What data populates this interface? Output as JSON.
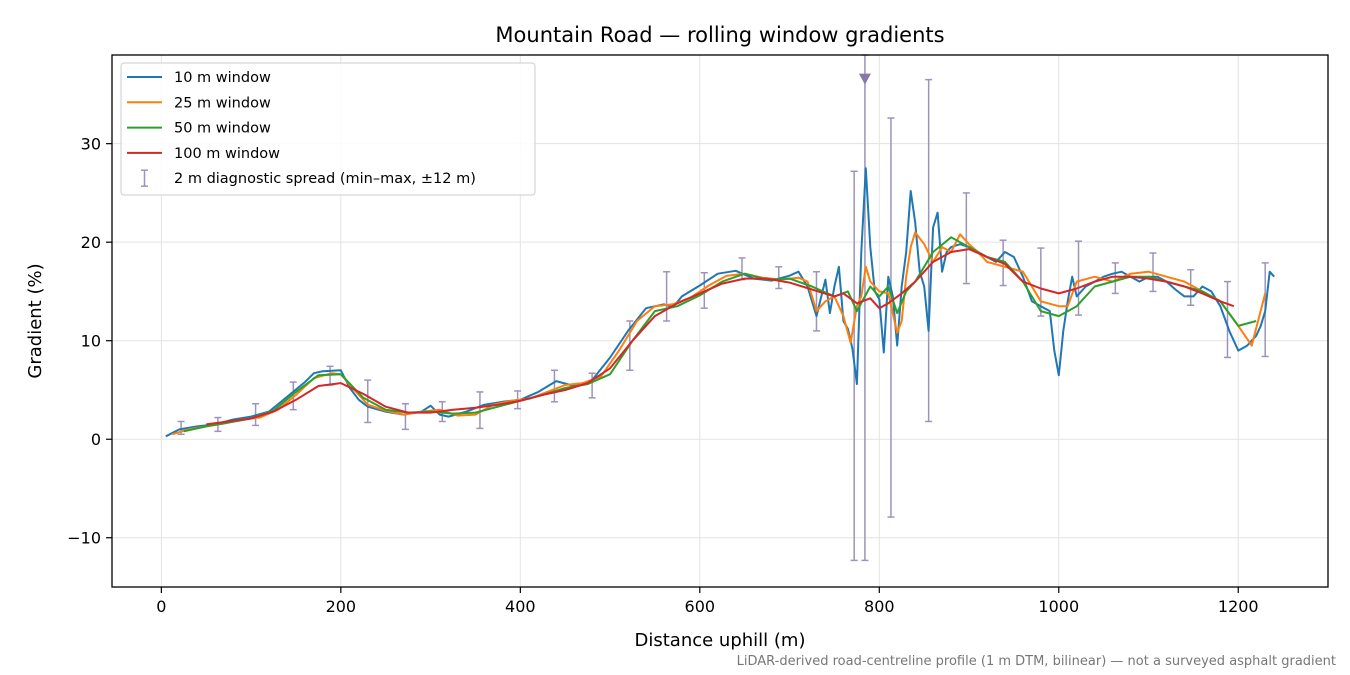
{
  "chart_data": {
    "type": "line",
    "title": "Mountain Road — rolling window gradients",
    "xlabel": "Distance uphill (m)",
    "ylabel": "Gradient (%)",
    "xlim": [
      -55,
      1300
    ],
    "ylim": [
      -15,
      39
    ],
    "xticks": [
      0,
      200,
      400,
      600,
      800,
      1000,
      1200
    ],
    "yticks": [
      -10,
      0,
      10,
      20,
      30
    ],
    "xtick_labels": [
      "0",
      "200",
      "400",
      "600",
      "800",
      "1000",
      "1200"
    ],
    "ytick_labels": [
      "−10",
      "0",
      "10",
      "20",
      "30"
    ],
    "grid": true,
    "legend_position": "top-left",
    "footnote": "LiDAR-derived road-centreline profile (1 m DTM, bilinear) — not a surveyed asphalt gradient",
    "series": [
      {
        "name": "10 m window",
        "color": "#1f77b4",
        "x": [
          5,
          20,
          40,
          60,
          80,
          100,
          120,
          140,
          160,
          170,
          180,
          200,
          210,
          220,
          230,
          250,
          270,
          290,
          300,
          310,
          320,
          340,
          360,
          380,
          400,
          420,
          440,
          460,
          480,
          500,
          520,
          540,
          560,
          570,
          580,
          600,
          620,
          640,
          660,
          680,
          700,
          710,
          720,
          730,
          740,
          745,
          750,
          755,
          760,
          765,
          770,
          775,
          780,
          785,
          790,
          795,
          800,
          805,
          810,
          815,
          820,
          825,
          830,
          835,
          840,
          845,
          850,
          855,
          860,
          865,
          870,
          875,
          880,
          890,
          900,
          910,
          920,
          930,
          940,
          950,
          960,
          970,
          980,
          990,
          995,
          1000,
          1005,
          1010,
          1015,
          1020,
          1030,
          1040,
          1050,
          1060,
          1070,
          1080,
          1090,
          1100,
          1110,
          1120,
          1130,
          1140,
          1150,
          1160,
          1170,
          1180,
          1190,
          1200,
          1210,
          1220,
          1225,
          1230,
          1235,
          1240
        ],
        "y": [
          0.3,
          1.0,
          1.3,
          1.5,
          2.0,
          2.3,
          2.8,
          4.3,
          5.8,
          6.7,
          6.9,
          7.0,
          5.2,
          4.0,
          3.3,
          2.8,
          2.5,
          2.8,
          3.4,
          2.5,
          2.3,
          2.8,
          3.5,
          3.8,
          4.0,
          4.8,
          5.9,
          5.4,
          6.0,
          8.3,
          11.0,
          13.3,
          13.7,
          13.4,
          14.5,
          15.6,
          16.8,
          17.1,
          16.3,
          16.1,
          16.6,
          17.0,
          15.5,
          12.5,
          16.2,
          12.8,
          15.5,
          17.5,
          12.0,
          11.2,
          9.2,
          5.6,
          19.0,
          27.5,
          19.5,
          15.0,
          14.2,
          8.8,
          16.5,
          14.5,
          9.5,
          15.5,
          19.0,
          25.2,
          22.0,
          17.0,
          15.5,
          11.0,
          21.5,
          23.0,
          17.0,
          19.0,
          19.5,
          19.8,
          19.5,
          19.0,
          18.5,
          18.0,
          19.0,
          18.5,
          16.5,
          14.0,
          13.5,
          13.0,
          9.0,
          6.5,
          11.0,
          14.0,
          16.5,
          14.5,
          15.5,
          16.0,
          16.5,
          16.8,
          17.0,
          16.5,
          16.0,
          16.5,
          16.5,
          16.0,
          15.2,
          14.5,
          14.5,
          15.5,
          15.0,
          13.5,
          11.0,
          9.0,
          9.5,
          10.5,
          11.5,
          13.0,
          17.0,
          16.5
        ]
      },
      {
        "name": "25 m window",
        "color": "#ff7f0e",
        "x": [
          12,
          30,
          50,
          70,
          90,
          110,
          130,
          150,
          170,
          190,
          200,
          215,
          230,
          250,
          270,
          290,
          310,
          330,
          350,
          370,
          390,
          410,
          430,
          450,
          470,
          490,
          510,
          530,
          550,
          570,
          590,
          610,
          630,
          650,
          670,
          690,
          710,
          720,
          730,
          740,
          750,
          760,
          768,
          775,
          780,
          785,
          790,
          800,
          810,
          820,
          825,
          830,
          835,
          840,
          850,
          860,
          870,
          880,
          890,
          900,
          910,
          920,
          940,
          960,
          980,
          1000,
          1010,
          1020,
          1040,
          1060,
          1080,
          1100,
          1120,
          1140,
          1160,
          1180,
          1200,
          1215,
          1230
        ],
        "y": [
          0.5,
          1.0,
          1.3,
          1.6,
          2.0,
          2.2,
          3.0,
          4.5,
          6.2,
          6.7,
          6.6,
          5.0,
          3.5,
          2.9,
          2.5,
          2.8,
          3.0,
          2.4,
          2.5,
          3.5,
          3.9,
          4.1,
          4.8,
          5.5,
          5.7,
          6.4,
          9.0,
          12.0,
          13.5,
          13.7,
          14.4,
          15.6,
          16.6,
          16.8,
          16.4,
          16.2,
          16.4,
          16.0,
          13.0,
          14.0,
          14.5,
          12.5,
          9.8,
          13.5,
          14.5,
          17.5,
          16.0,
          15.0,
          14.8,
          10.8,
          12.0,
          16.5,
          19.5,
          21.0,
          19.8,
          18.0,
          19.5,
          19.0,
          20.8,
          19.8,
          19.0,
          18.0,
          17.5,
          17.0,
          14.0,
          13.5,
          13.5,
          16.0,
          16.5,
          16.0,
          16.8,
          17.0,
          16.5,
          16.0,
          15.0,
          14.0,
          11.5,
          9.5,
          14.8
        ]
      },
      {
        "name": "50 m window",
        "color": "#2ca02c",
        "x": [
          25,
          50,
          75,
          100,
          125,
          150,
          175,
          200,
          225,
          250,
          275,
          300,
          325,
          350,
          375,
          400,
          425,
          450,
          475,
          500,
          525,
          550,
          575,
          600,
          625,
          650,
          675,
          700,
          725,
          750,
          765,
          775,
          790,
          800,
          810,
          820,
          830,
          840,
          860,
          880,
          900,
          920,
          940,
          960,
          980,
          1000,
          1020,
          1040,
          1060,
          1080,
          1100,
          1120,
          1140,
          1160,
          1180,
          1200,
          1220
        ],
        "y": [
          0.8,
          1.3,
          1.7,
          2.1,
          2.9,
          4.8,
          6.5,
          6.6,
          4.2,
          3.0,
          2.7,
          2.8,
          2.6,
          2.7,
          3.3,
          3.9,
          4.5,
          5.2,
          5.6,
          6.6,
          10.0,
          13.0,
          13.5,
          14.6,
          16.0,
          16.8,
          16.2,
          16.3,
          15.5,
          14.5,
          15.0,
          13.0,
          15.5,
          14.5,
          15.5,
          12.8,
          15.0,
          16.0,
          19.0,
          20.5,
          19.5,
          18.5,
          18.0,
          16.0,
          13.0,
          12.5,
          13.5,
          15.5,
          16.0,
          16.5,
          16.5,
          16.0,
          15.5,
          15.0,
          14.0,
          11.5,
          12.0
        ]
      },
      {
        "name": "100 m window",
        "color": "#d62728",
        "x": [
          50,
          100,
          125,
          150,
          175,
          200,
          225,
          250,
          275,
          300,
          325,
          350,
          375,
          400,
          425,
          450,
          475,
          500,
          525,
          550,
          575,
          600,
          625,
          650,
          675,
          700,
          725,
          750,
          760,
          775,
          790,
          800,
          810,
          825,
          840,
          860,
          880,
          900,
          920,
          940,
          960,
          980,
          1000,
          1020,
          1040,
          1060,
          1080,
          1100,
          1120,
          1140,
          1160,
          1180,
          1195
        ],
        "y": [
          1.5,
          2.1,
          2.8,
          4.0,
          5.4,
          5.7,
          4.6,
          3.3,
          2.7,
          2.7,
          3.0,
          3.2,
          3.5,
          3.9,
          4.5,
          5.0,
          5.7,
          7.2,
          10.0,
          12.5,
          13.8,
          14.8,
          15.8,
          16.3,
          16.3,
          15.9,
          15.2,
          14.5,
          14.8,
          13.8,
          14.3,
          13.3,
          13.8,
          14.8,
          16.0,
          18.0,
          19.0,
          19.3,
          18.5,
          17.8,
          16.0,
          15.3,
          14.8,
          15.3,
          16.0,
          16.5,
          16.5,
          16.3,
          16.0,
          15.5,
          14.8,
          14.0,
          13.5
        ]
      }
    ],
    "errorbars": {
      "name": "2 m diagnostic spread (min–max, ±12 m)",
      "color": "#9d93bd",
      "points": [
        {
          "x": 22,
          "low": 0.5,
          "high": 1.8
        },
        {
          "x": 63,
          "low": 0.8,
          "high": 2.2
        },
        {
          "x": 105,
          "low": 1.4,
          "high": 3.6
        },
        {
          "x": 147,
          "low": 3.0,
          "high": 5.8
        },
        {
          "x": 188,
          "low": 5.5,
          "high": 7.4
        },
        {
          "x": 230,
          "low": 1.7,
          "high": 6.0
        },
        {
          "x": 272,
          "low": 1.0,
          "high": 3.6
        },
        {
          "x": 313,
          "low": 1.8,
          "high": 3.8
        },
        {
          "x": 355,
          "low": 1.1,
          "high": 4.8
        },
        {
          "x": 397,
          "low": 3.1,
          "high": 4.9
        },
        {
          "x": 438,
          "low": 3.8,
          "high": 7.0
        },
        {
          "x": 480,
          "low": 4.2,
          "high": 6.7
        },
        {
          "x": 522,
          "low": 7.0,
          "high": 12.0
        },
        {
          "x": 563,
          "low": 12.0,
          "high": 17.0
        },
        {
          "x": 605,
          "low": 13.3,
          "high": 16.9
        },
        {
          "x": 647,
          "low": 16.2,
          "high": 18.4
        },
        {
          "x": 688,
          "low": 15.3,
          "high": 17.5
        },
        {
          "x": 730,
          "low": 11.0,
          "high": 17.0
        },
        {
          "x": 772,
          "low": -12.3,
          "high": 27.2
        },
        {
          "x": 784,
          "low": -12.3,
          "high": 39.0
        },
        {
          "x": 813,
          "low": -7.9,
          "high": 32.6
        },
        {
          "x": 855,
          "low": 1.8,
          "high": 36.5
        },
        {
          "x": 897,
          "low": 15.8,
          "high": 25.0
        },
        {
          "x": 938,
          "low": 15.6,
          "high": 20.2
        },
        {
          "x": 980,
          "low": 12.5,
          "high": 19.4
        },
        {
          "x": 1022,
          "low": 12.6,
          "high": 20.1
        },
        {
          "x": 1063,
          "low": 14.8,
          "high": 17.9
        },
        {
          "x": 1105,
          "low": 15.0,
          "high": 18.9
        },
        {
          "x": 1147,
          "low": 13.6,
          "high": 17.2
        },
        {
          "x": 1188,
          "low": 8.3,
          "high": 16.0
        },
        {
          "x": 1230,
          "low": 8.4,
          "high": 17.9
        }
      ]
    },
    "markers": [
      {
        "x": 784,
        "y": 36.5,
        "symbol": "triangle-down",
        "color": "#8878a8"
      }
    ]
  }
}
